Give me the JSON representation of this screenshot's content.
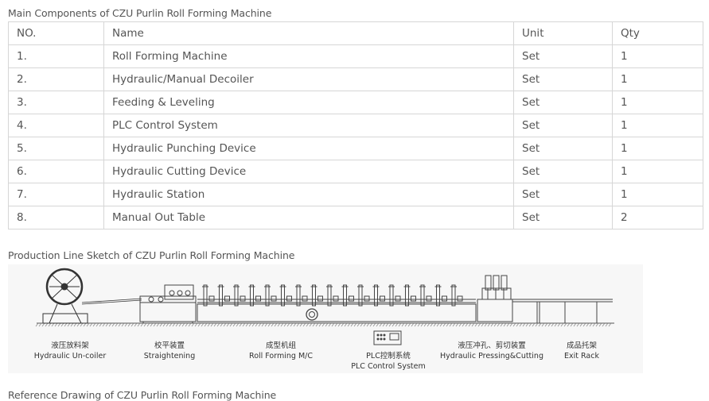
{
  "captions": {
    "components": "Main Components of CZU Purlin Roll Forming Machine",
    "sketch": "Production Line Sketch of CZU Purlin Roll Forming Machine",
    "drawing": "Reference Drawing of CZU Purlin Roll Forming Machine"
  },
  "table": {
    "headers": [
      "NO.",
      "Name",
      "Unit",
      "Qty"
    ],
    "rows": [
      [
        "1.",
        "Roll Forming Machine",
        "Set",
        "1"
      ],
      [
        "2.",
        "Hydraulic/Manual Decoiler",
        "Set",
        "1"
      ],
      [
        "3.",
        "Feeding & Leveling",
        "Set",
        "1"
      ],
      [
        "4.",
        "PLC Control System",
        "Set",
        "1"
      ],
      [
        "5.",
        "Hydraulic Punching Device",
        "Set",
        "1"
      ],
      [
        "6.",
        "Hydraulic Cutting Device",
        "Set",
        "1"
      ],
      [
        "7.",
        "Hydraulic Station",
        "Set",
        "1"
      ],
      [
        "8.",
        "Manual Out Table",
        "Set",
        "2"
      ]
    ]
  },
  "sketch_labels": {
    "uncoiler_cn": "液压放料架",
    "uncoiler_en": "Hydraulic Un-coiler",
    "straightening_cn": "校平装置",
    "straightening_en": "Straightening",
    "forming_cn": "成型机组",
    "forming_en": "Roll Forming M/C",
    "plc_cn": "PLC控制系统",
    "plc_en": "PLC Control System",
    "pressing_cn": "液压冲孔、剪切装置",
    "pressing_en": "Hydraulic Pressing&Cutting",
    "exit_cn": "成品托架",
    "exit_en": "Exit Rack"
  }
}
